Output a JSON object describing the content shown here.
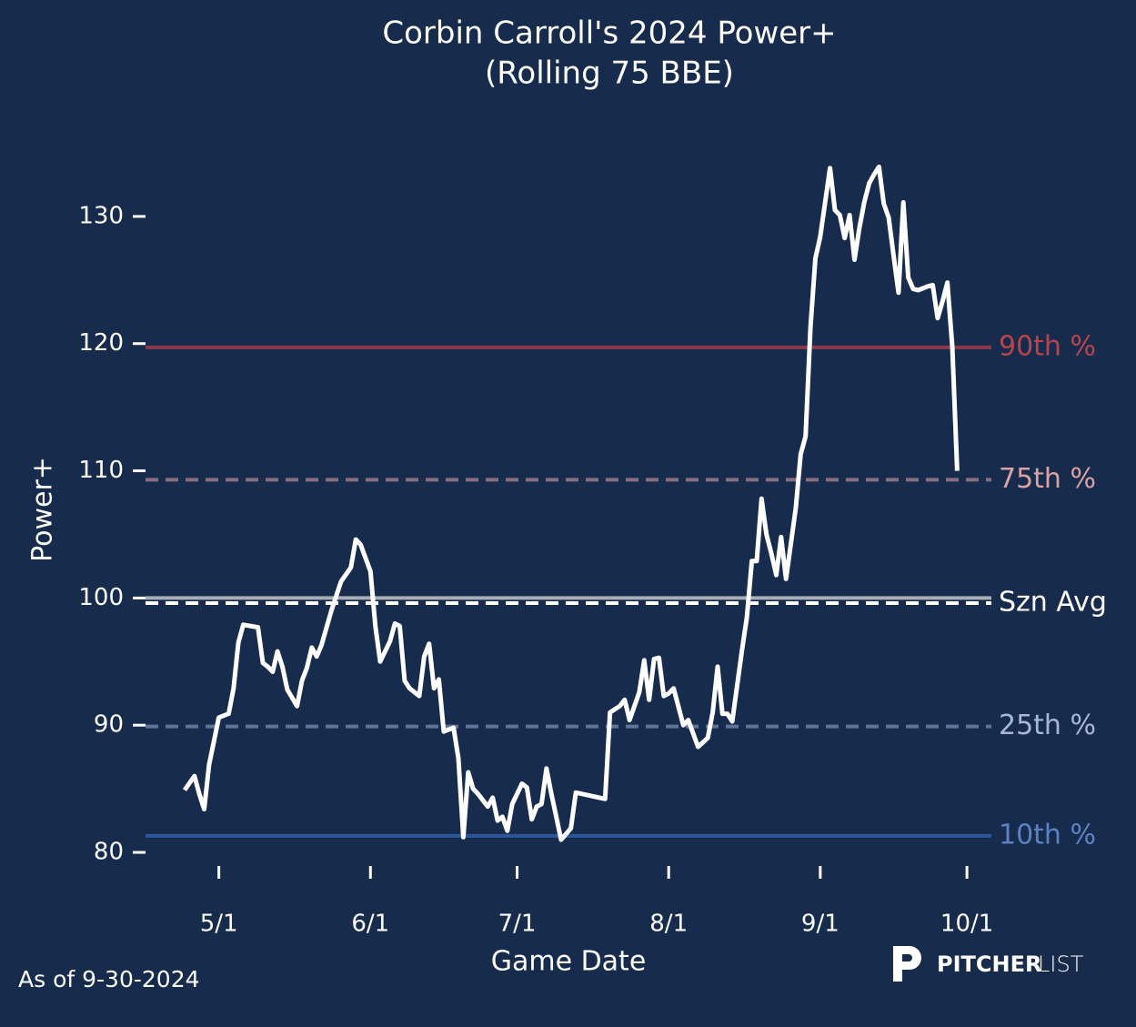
{
  "chart_data": {
    "type": "line",
    "title": [
      "Corbin Carroll's 2024 Power+",
      "(Rolling 75 BBE)"
    ],
    "xlabel": "Game Date",
    "ylabel": "Power+",
    "footnote": "As of 9-30-2024",
    "logo": {
      "bold": "PITCHER",
      "light": "LIST"
    },
    "x": [
      "4/24",
      "4/26",
      "4/27",
      "4/28",
      "4/29",
      "5/1",
      "5/3",
      "5/4",
      "5/5",
      "5/6",
      "5/9",
      "5/10",
      "5/11",
      "5/12",
      "5/13",
      "5/14",
      "5/15",
      "5/17",
      "5/18",
      "5/19",
      "5/20",
      "5/21",
      "5/22",
      "5/24",
      "5/26",
      "5/28",
      "5/29",
      "5/30",
      "6/1",
      "6/2",
      "6/3",
      "6/5",
      "6/6",
      "6/7",
      "6/8",
      "6/9",
      "6/11",
      "6/12",
      "6/13",
      "6/14",
      "6/15",
      "6/16",
      "6/18",
      "6/19",
      "6/20",
      "6/21",
      "6/22",
      "6/23",
      "6/24",
      "6/25",
      "6/26",
      "6/27",
      "6/28",
      "6/29",
      "6/30",
      "7/2",
      "7/3",
      "7/4",
      "7/5",
      "7/6",
      "7/7",
      "7/8",
      "7/9",
      "7/10",
      "7/12",
      "7/13",
      "7/19",
      "7/20",
      "7/22",
      "7/23",
      "7/24",
      "7/26",
      "7/27",
      "7/28",
      "7/29",
      "7/30",
      "7/31",
      "8/1",
      "8/2",
      "8/4",
      "8/5",
      "8/7",
      "8/9",
      "8/10",
      "8/11",
      "8/12",
      "8/13",
      "8/14",
      "8/16",
      "8/17",
      "8/18",
      "8/19",
      "8/20",
      "8/21",
      "8/22",
      "8/23",
      "8/24",
      "8/25",
      "8/26",
      "8/27",
      "8/28",
      "8/29",
      "8/30",
      "8/31",
      "9/1",
      "9/2",
      "9/3",
      "9/4",
      "9/5",
      "9/6",
      "9/7",
      "9/8",
      "9/9",
      "9/10",
      "9/11",
      "9/12",
      "9/13",
      "9/14",
      "9/15",
      "9/16",
      "9/17",
      "9/18",
      "9/19",
      "9/20",
      "9/21",
      "9/23",
      "9/24",
      "9/25",
      "9/26",
      "9/27",
      "9/28",
      "9/29"
    ],
    "series": [
      {
        "name": "Power+",
        "color": "#ffffff",
        "values": [
          84.9,
          86.0,
          84.6,
          83.4,
          86.9,
          90.6,
          90.9,
          92.9,
          96.5,
          97.9,
          97.7,
          94.9,
          94.6,
          94.2,
          95.8,
          94.6,
          92.8,
          91.5,
          93.5,
          94.5,
          96.1,
          95.4,
          96.3,
          99.0,
          101.3,
          102.4,
          104.6,
          104.2,
          102.1,
          97.8,
          95.0,
          96.6,
          98.0,
          97.8,
          93.5,
          92.9,
          92.3,
          95.4,
          96.4,
          92.9,
          93.6,
          89.5,
          89.8,
          87.4,
          81.2,
          86.3,
          85.0,
          84.6,
          84.1,
          83.6,
          84.3,
          82.5,
          82.8,
          81.7,
          83.8,
          85.4,
          85.1,
          82.6,
          83.6,
          83.8,
          86.6,
          84.6,
          82.8,
          81.0,
          81.9,
          84.7,
          84.2,
          91.0,
          91.5,
          92.0,
          90.4,
          92.6,
          95.1,
          92.0,
          95.2,
          95.3,
          92.3,
          92.5,
          92.9,
          90.0,
          90.4,
          88.3,
          89.0,
          91.0,
          94.6,
          90.9,
          90.9,
          90.3,
          95.9,
          98.5,
          102.9,
          102.9,
          107.8,
          105.0,
          103.5,
          101.8,
          104.8,
          101.5,
          104.3,
          107.1,
          111.3,
          112.7,
          121.3,
          126.7,
          128.4,
          131.1,
          133.8,
          130.5,
          130.1,
          128.3,
          130.1,
          126.6,
          129.1,
          131.1,
          132.6,
          133.3,
          133.9,
          131.0,
          129.9,
          126.9,
          124.0,
          131.1,
          125.2,
          124.3,
          124.2,
          124.5,
          124.6,
          122.0,
          123.3,
          124.8,
          119.8,
          110.0
        ]
      }
    ],
    "reference_lines": [
      {
        "value": 119.7,
        "color": "#8c3a4b",
        "dash": false,
        "label": "90th %",
        "label_color": "#b8454e"
      },
      {
        "value": 109.3,
        "color": "#876e80",
        "dash": true,
        "label": "75th %",
        "label_color": "#d9a3a3"
      },
      {
        "value": 100,
        "color": "#a8aeb8",
        "dash": false
      },
      {
        "value": 99.6,
        "color": "#ffffff",
        "dash": true,
        "label": "Szn Avg",
        "label_color": "#ffffff"
      },
      {
        "value": 89.9,
        "color": "#5f7496",
        "dash": true,
        "label": "25th %",
        "label_color": "#a9b8d6"
      },
      {
        "value": 81.3,
        "color": "#2b5799",
        "dash": false,
        "label": "10th %",
        "label_color": "#5c82c2"
      }
    ],
    "xlim": [
      "4/16",
      "10/6"
    ],
    "xticks": [
      "5/1",
      "6/1",
      "7/1",
      "8/1",
      "9/1",
      "10/1"
    ],
    "ylim": [
      77.5,
      135
    ],
    "yticks": [
      80,
      90,
      100,
      110,
      120,
      130
    ]
  }
}
